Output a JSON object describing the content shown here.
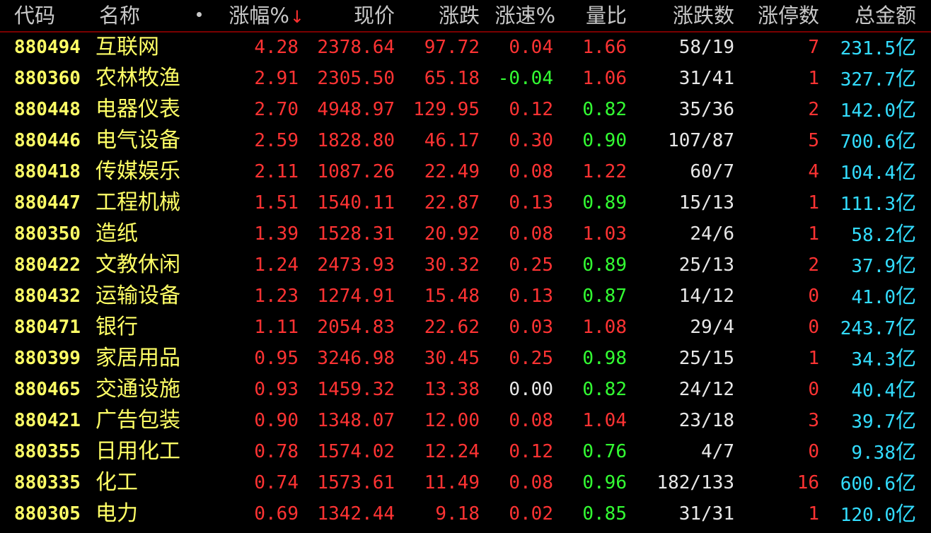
{
  "header": {
    "code": "代码",
    "name": "名称",
    "pct_change": "涨幅%",
    "sort_arrow": "↓",
    "price": "现价",
    "change": "涨跌",
    "speed": "涨速%",
    "volume_ratio": "量比",
    "up_down_count": "涨跌数",
    "limit_up_count": "涨停数",
    "total_amount": "总金额"
  },
  "colors": {
    "background": "#000000",
    "code_name": "#ffff66",
    "up": "#ff3333",
    "down": "#33ff33",
    "flat": "#e8e8e8",
    "amount": "#33ddff"
  },
  "rows": [
    {
      "code": "880494",
      "name": "互联网",
      "pct": "4.28",
      "price": "2378.64",
      "change": "97.72",
      "speed": "0.04",
      "speed_color": "red",
      "ratio": "1.66",
      "ratio_color": "red",
      "updown": "58/19",
      "limit": "7",
      "amount": "231.5",
      "unit": "亿"
    },
    {
      "code": "880360",
      "name": "农林牧渔",
      "pct": "2.91",
      "price": "2305.50",
      "change": "65.18",
      "speed": "-0.04",
      "speed_color": "green",
      "ratio": "1.06",
      "ratio_color": "red",
      "updown": "31/41",
      "limit": "1",
      "amount": "327.7",
      "unit": "亿"
    },
    {
      "code": "880448",
      "name": "电器仪表",
      "pct": "2.70",
      "price": "4948.97",
      "change": "129.95",
      "speed": "0.12",
      "speed_color": "red",
      "ratio": "0.82",
      "ratio_color": "green",
      "updown": "35/36",
      "limit": "2",
      "amount": "142.0",
      "unit": "亿"
    },
    {
      "code": "880446",
      "name": "电气设备",
      "pct": "2.59",
      "price": "1828.80",
      "change": "46.17",
      "speed": "0.30",
      "speed_color": "red",
      "ratio": "0.90",
      "ratio_color": "green",
      "updown": "107/87",
      "limit": "5",
      "amount": "700.6",
      "unit": "亿"
    },
    {
      "code": "880418",
      "name": "传媒娱乐",
      "pct": "2.11",
      "price": "1087.26",
      "change": "22.49",
      "speed": "0.08",
      "speed_color": "red",
      "ratio": "1.22",
      "ratio_color": "red",
      "updown": "60/7",
      "limit": "4",
      "amount": "104.4",
      "unit": "亿"
    },
    {
      "code": "880447",
      "name": "工程机械",
      "pct": "1.51",
      "price": "1540.11",
      "change": "22.87",
      "speed": "0.13",
      "speed_color": "red",
      "ratio": "0.89",
      "ratio_color": "green",
      "updown": "15/13",
      "limit": "1",
      "amount": "111.3",
      "unit": "亿"
    },
    {
      "code": "880350",
      "name": "造纸",
      "pct": "1.39",
      "price": "1528.31",
      "change": "20.92",
      "speed": "0.08",
      "speed_color": "red",
      "ratio": "1.03",
      "ratio_color": "red",
      "updown": "24/6",
      "limit": "1",
      "amount": "58.2",
      "unit": "亿"
    },
    {
      "code": "880422",
      "name": "文教休闲",
      "pct": "1.24",
      "price": "2473.93",
      "change": "30.32",
      "speed": "0.25",
      "speed_color": "red",
      "ratio": "0.89",
      "ratio_color": "green",
      "updown": "25/13",
      "limit": "2",
      "amount": "37.9",
      "unit": "亿"
    },
    {
      "code": "880432",
      "name": "运输设备",
      "pct": "1.23",
      "price": "1274.91",
      "change": "15.48",
      "speed": "0.13",
      "speed_color": "red",
      "ratio": "0.87",
      "ratio_color": "green",
      "updown": "14/12",
      "limit": "0",
      "amount": "41.0",
      "unit": "亿"
    },
    {
      "code": "880471",
      "name": "银行",
      "pct": "1.11",
      "price": "2054.83",
      "change": "22.62",
      "speed": "0.03",
      "speed_color": "red",
      "ratio": "1.08",
      "ratio_color": "red",
      "updown": "29/4",
      "limit": "0",
      "amount": "243.7",
      "unit": "亿"
    },
    {
      "code": "880399",
      "name": "家居用品",
      "pct": "0.95",
      "price": "3246.98",
      "change": "30.45",
      "speed": "0.25",
      "speed_color": "red",
      "ratio": "0.98",
      "ratio_color": "green",
      "updown": "25/15",
      "limit": "1",
      "amount": "34.3",
      "unit": "亿"
    },
    {
      "code": "880465",
      "name": "交通设施",
      "pct": "0.93",
      "price": "1459.32",
      "change": "13.38",
      "speed": "0.00",
      "speed_color": "white",
      "ratio": "0.82",
      "ratio_color": "green",
      "updown": "24/12",
      "limit": "0",
      "amount": "40.4",
      "unit": "亿"
    },
    {
      "code": "880421",
      "name": "广告包装",
      "pct": "0.90",
      "price": "1348.07",
      "change": "12.00",
      "speed": "0.08",
      "speed_color": "red",
      "ratio": "1.04",
      "ratio_color": "red",
      "updown": "23/18",
      "limit": "3",
      "amount": "39.7",
      "unit": "亿"
    },
    {
      "code": "880355",
      "name": "日用化工",
      "pct": "0.78",
      "price": "1574.02",
      "change": "12.24",
      "speed": "0.12",
      "speed_color": "red",
      "ratio": "0.76",
      "ratio_color": "green",
      "updown": "4/7",
      "limit": "0",
      "amount": "9.38",
      "unit": "亿"
    },
    {
      "code": "880335",
      "name": "化工",
      "pct": "0.74",
      "price": "1573.61",
      "change": "11.49",
      "speed": "0.08",
      "speed_color": "red",
      "ratio": "0.96",
      "ratio_color": "green",
      "updown": "182/133",
      "limit": "16",
      "amount": "600.6",
      "unit": "亿"
    },
    {
      "code": "880305",
      "name": "电力",
      "pct": "0.69",
      "price": "1342.44",
      "change": "9.18",
      "speed": "0.02",
      "speed_color": "red",
      "ratio": "0.85",
      "ratio_color": "green",
      "updown": "31/31",
      "limit": "1",
      "amount": "120.0",
      "unit": "亿"
    }
  ]
}
